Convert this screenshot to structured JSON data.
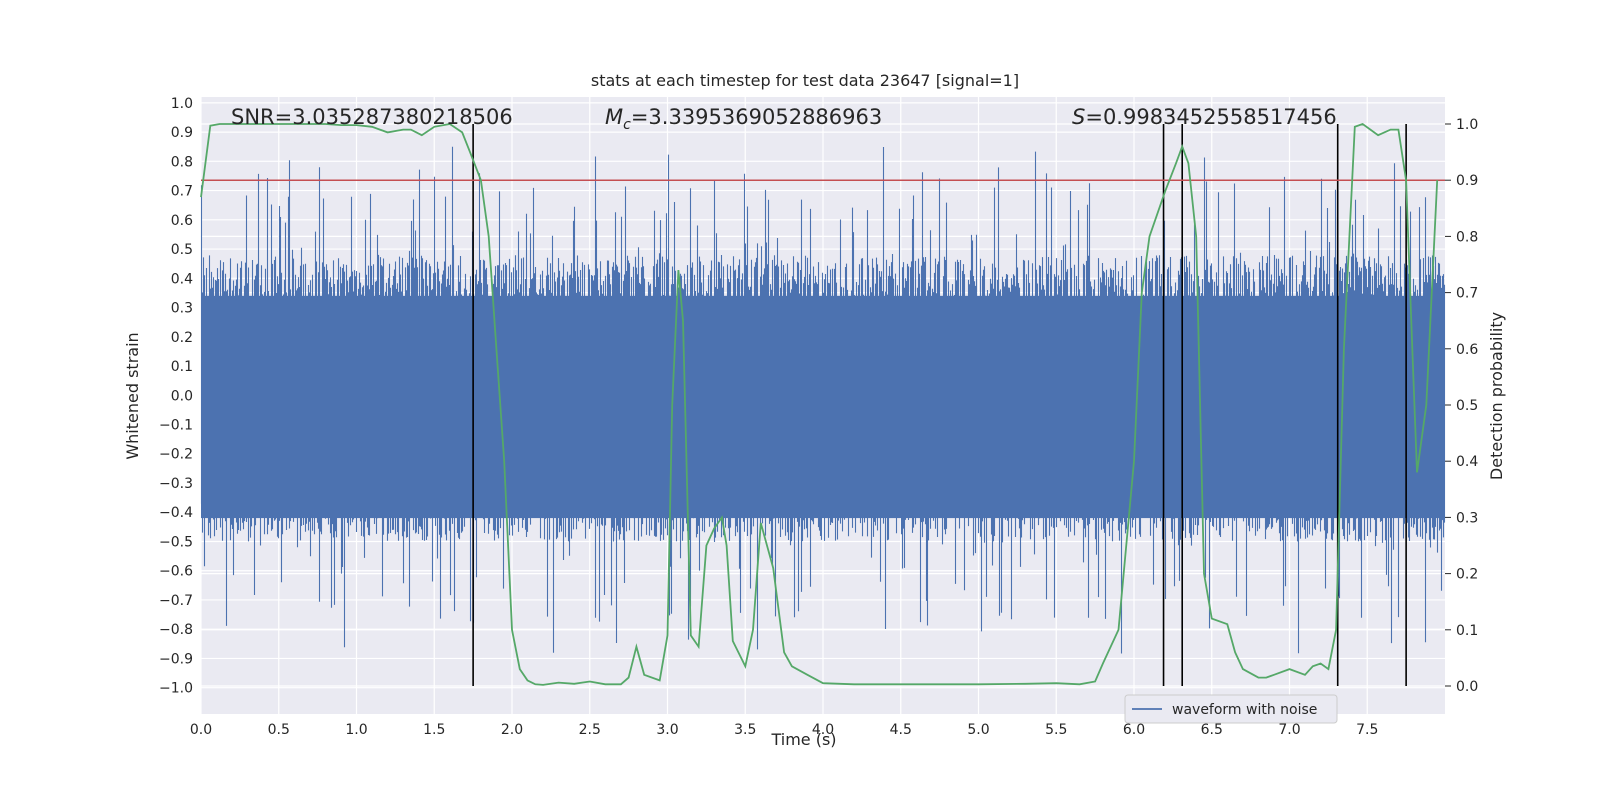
{
  "chart_data": {
    "type": "line",
    "title": "stats at each timestep for test data 23647 [signal=1]",
    "xlabel": "Time (s)",
    "ylabel_left": "Whitened strain",
    "ylabel_right": "Detection probability",
    "xlim": [
      0.0,
      8.0
    ],
    "ylim_left": [
      -1.09,
      1.02
    ],
    "ylim_right": [
      0.0,
      1.0
    ],
    "x_ticks": [
      "0.0",
      "0.5",
      "1.0",
      "1.5",
      "2.0",
      "2.5",
      "3.0",
      "3.5",
      "4.0",
      "4.5",
      "5.0",
      "5.5",
      "6.0",
      "6.5",
      "7.0",
      "7.5"
    ],
    "y_ticks_left": [
      "1.0",
      "0.9",
      "0.8",
      "0.7",
      "0.6",
      "0.5",
      "0.4",
      "0.3",
      "0.2",
      "0.1",
      "0.0",
      "−0.1",
      "−0.2",
      "−0.3",
      "−0.4",
      "−0.5",
      "−0.6",
      "−0.7",
      "−0.8",
      "−0.9",
      "−1.0"
    ],
    "y_ticks_right": [
      "0.0",
      "0.1",
      "0.2",
      "0.3",
      "0.4",
      "0.5",
      "0.6",
      "0.7",
      "0.8",
      "0.9",
      "1.0"
    ],
    "grid": true,
    "legend_position": "bottom-right",
    "annotations": {
      "snr": "SNR=3.035287380218506",
      "mc_symbol": "M",
      "mc_sub": "c",
      "mc_value": "=3.3395369052886963",
      "s_symbol": "S",
      "s_value": "=0.9983452558517456"
    },
    "threshold": {
      "value": 0.9,
      "axis": "right",
      "color": "#c44e52"
    },
    "detection_markers_x": [
      1.75,
      6.19,
      6.31,
      7.31,
      7.75
    ],
    "series": [
      {
        "name": "waveform with noise",
        "axis": "left",
        "color": "#4c72b0",
        "style": "dense noise, envelope approx ±0.95"
      },
      {
        "name": "",
        "axis": "right",
        "color": "#55a868",
        "x": [
          0.0,
          0.06,
          0.12,
          0.2,
          0.3,
          0.45,
          0.6,
          0.8,
          0.9,
          1.0,
          1.1,
          1.2,
          1.3,
          1.35,
          1.42,
          1.5,
          1.6,
          1.68,
          1.73,
          1.8,
          1.85,
          1.9,
          1.95,
          2.0,
          2.05,
          2.1,
          2.15,
          2.2,
          2.3,
          2.4,
          2.45,
          2.5,
          2.6,
          2.7,
          2.75,
          2.8,
          2.85,
          2.95,
          3.0,
          3.03,
          3.07,
          3.1,
          3.15,
          3.2,
          3.25,
          3.3,
          3.35,
          3.38,
          3.42,
          3.5,
          3.55,
          3.6,
          3.68,
          3.75,
          3.8,
          3.9,
          4.0,
          4.2,
          4.5,
          5.0,
          5.3,
          5.5,
          5.65,
          5.75,
          5.8,
          5.9,
          6.0,
          6.05,
          6.1,
          6.2,
          6.27,
          6.31,
          6.35,
          6.4,
          6.45,
          6.5,
          6.6,
          6.65,
          6.7,
          6.8,
          6.85,
          6.9,
          7.0,
          7.1,
          7.15,
          7.2,
          7.25,
          7.3,
          7.35,
          7.42,
          7.47,
          7.52,
          7.57,
          7.65,
          7.7,
          7.75,
          7.79,
          7.82,
          7.88,
          7.95
        ],
        "y": [
          0.87,
          0.997,
          1.0,
          1.0,
          1.0,
          1.0,
          1.0,
          1.0,
          0.998,
          0.998,
          0.995,
          0.985,
          0.99,
          0.99,
          0.98,
          0.995,
          1.0,
          0.985,
          0.95,
          0.9,
          0.8,
          0.6,
          0.4,
          0.1,
          0.03,
          0.01,
          0.003,
          0.002,
          0.006,
          0.004,
          0.006,
          0.008,
          0.003,
          0.003,
          0.015,
          0.07,
          0.02,
          0.01,
          0.09,
          0.5,
          0.74,
          0.65,
          0.09,
          0.07,
          0.25,
          0.28,
          0.3,
          0.25,
          0.08,
          0.035,
          0.1,
          0.29,
          0.21,
          0.06,
          0.035,
          0.02,
          0.005,
          0.003,
          0.003,
          0.003,
          0.004,
          0.005,
          0.003,
          0.008,
          0.04,
          0.1,
          0.4,
          0.7,
          0.8,
          0.88,
          0.93,
          0.96,
          0.93,
          0.8,
          0.2,
          0.12,
          0.11,
          0.06,
          0.03,
          0.015,
          0.015,
          0.02,
          0.03,
          0.02,
          0.035,
          0.04,
          0.03,
          0.1,
          0.6,
          0.995,
          1.0,
          0.99,
          0.98,
          0.99,
          0.99,
          0.9,
          0.6,
          0.38,
          0.5,
          0.9
        ]
      }
    ]
  }
}
